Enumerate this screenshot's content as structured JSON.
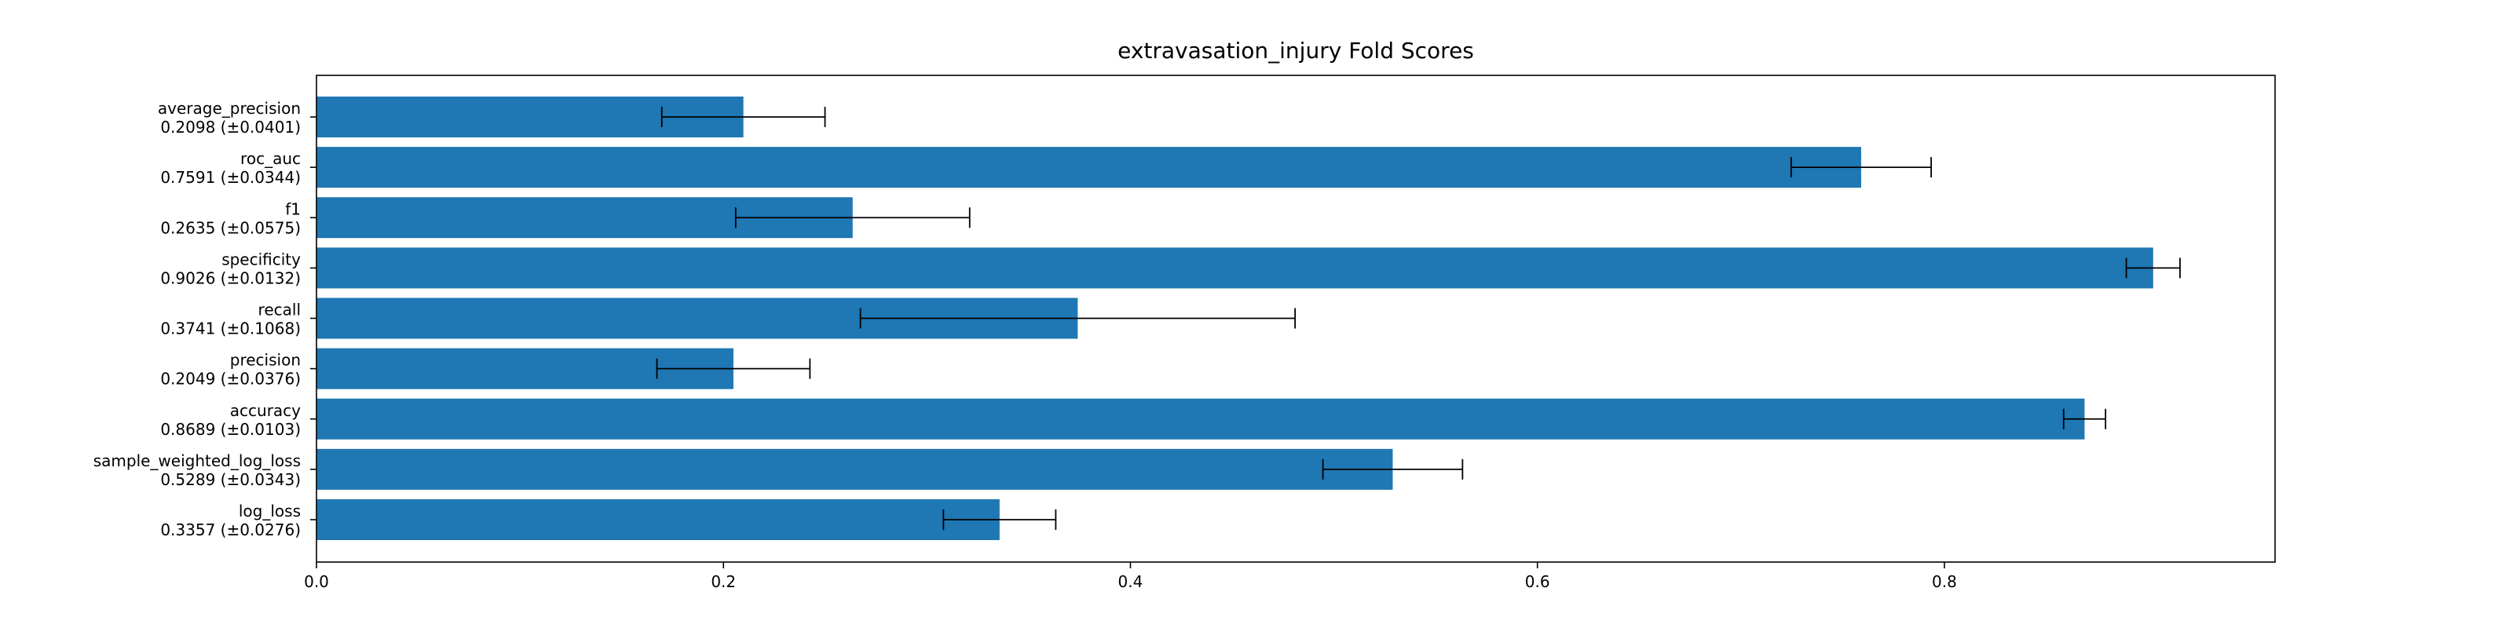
{
  "chart_data": {
    "type": "bar",
    "orientation": "horizontal",
    "title": "extravasation_injury Fold Scores",
    "xlabel": "",
    "ylabel": "",
    "xlim": [
      0,
      0.9625
    ],
    "xticks": [
      "0.0",
      "0.2",
      "0.4",
      "0.6",
      "0.8"
    ],
    "xtick_values": [
      0,
      0.2,
      0.4,
      0.6,
      0.8
    ],
    "grid": false,
    "bar_color": "#1f77b4",
    "errorbar_color": "#000000",
    "bars": [
      {
        "metric": "average_precision",
        "label": "0.2098 (±0.0401)",
        "value": 0.2098,
        "error": 0.0401
      },
      {
        "metric": "roc_auc",
        "label": "0.7591 (±0.0344)",
        "value": 0.7591,
        "error": 0.0344
      },
      {
        "metric": "f1",
        "label": "0.2635 (±0.0575)",
        "value": 0.2635,
        "error": 0.0575
      },
      {
        "metric": "specificity",
        "label": "0.9026 (±0.0132)",
        "value": 0.9026,
        "error": 0.0132
      },
      {
        "metric": "recall",
        "label": "0.3741 (±0.1068)",
        "value": 0.3741,
        "error": 0.1068
      },
      {
        "metric": "precision",
        "label": "0.2049 (±0.0376)",
        "value": 0.2049,
        "error": 0.0376
      },
      {
        "metric": "accuracy",
        "label": "0.8689 (±0.0103)",
        "value": 0.8689,
        "error": 0.0103
      },
      {
        "metric": "sample_weighted_log_loss",
        "label": "0.5289 (±0.0343)",
        "value": 0.5289,
        "error": 0.0343
      },
      {
        "metric": "log_loss",
        "label": "0.3357 (±0.0276)",
        "value": 0.3357,
        "error": 0.0276
      }
    ]
  }
}
